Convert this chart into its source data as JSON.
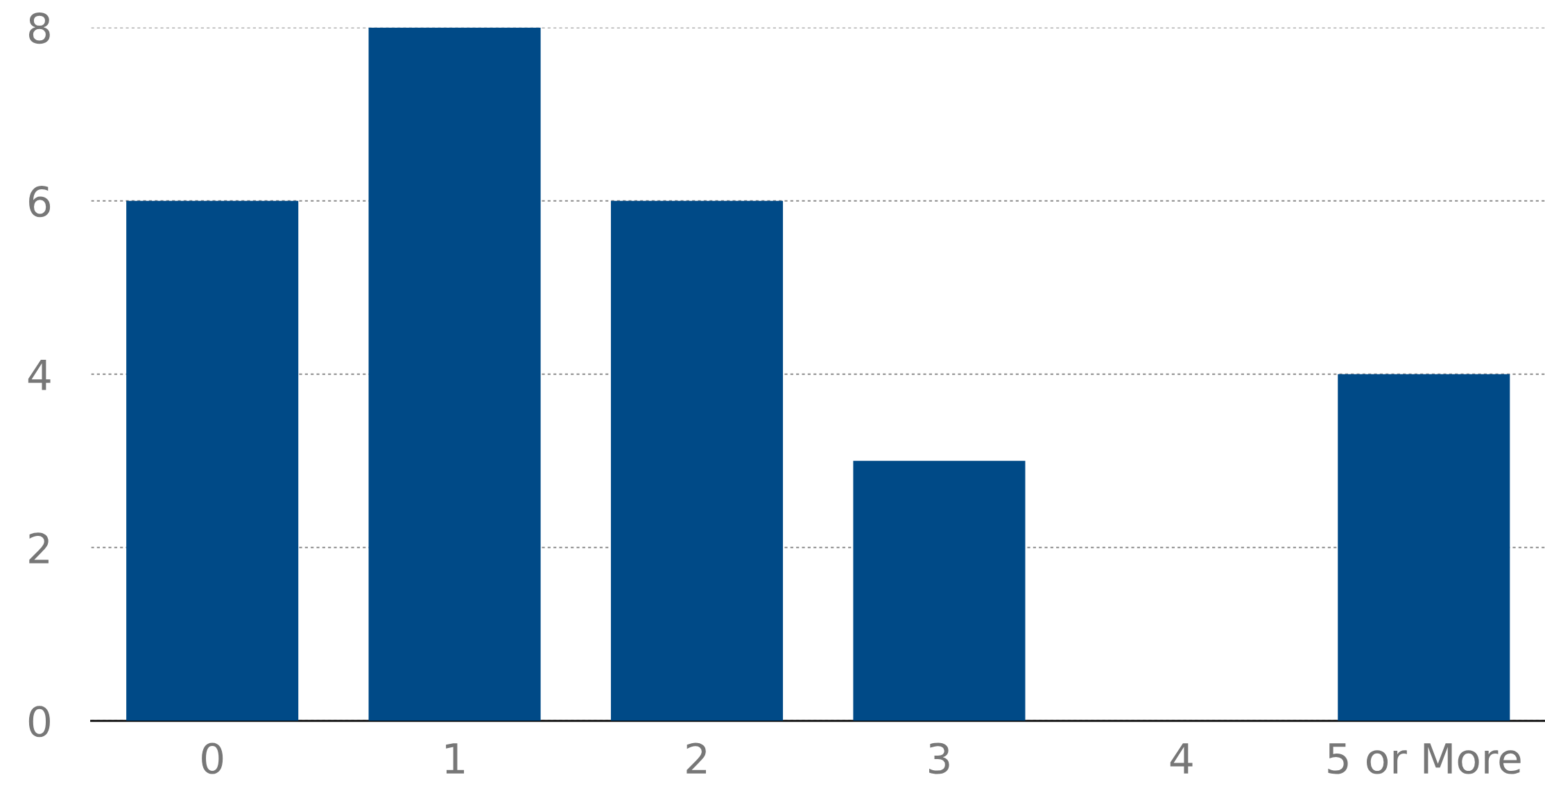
{
  "chart_data": {
    "type": "bar",
    "categories": [
      "0",
      "1",
      "2",
      "3",
      "4",
      "5 or More"
    ],
    "values": [
      6,
      8,
      6,
      3,
      0,
      4
    ],
    "color": "#004a87",
    "ylim": [
      0,
      8
    ],
    "yticks": [
      0,
      2,
      4,
      6,
      8
    ],
    "grid": "y",
    "legend": false
  }
}
